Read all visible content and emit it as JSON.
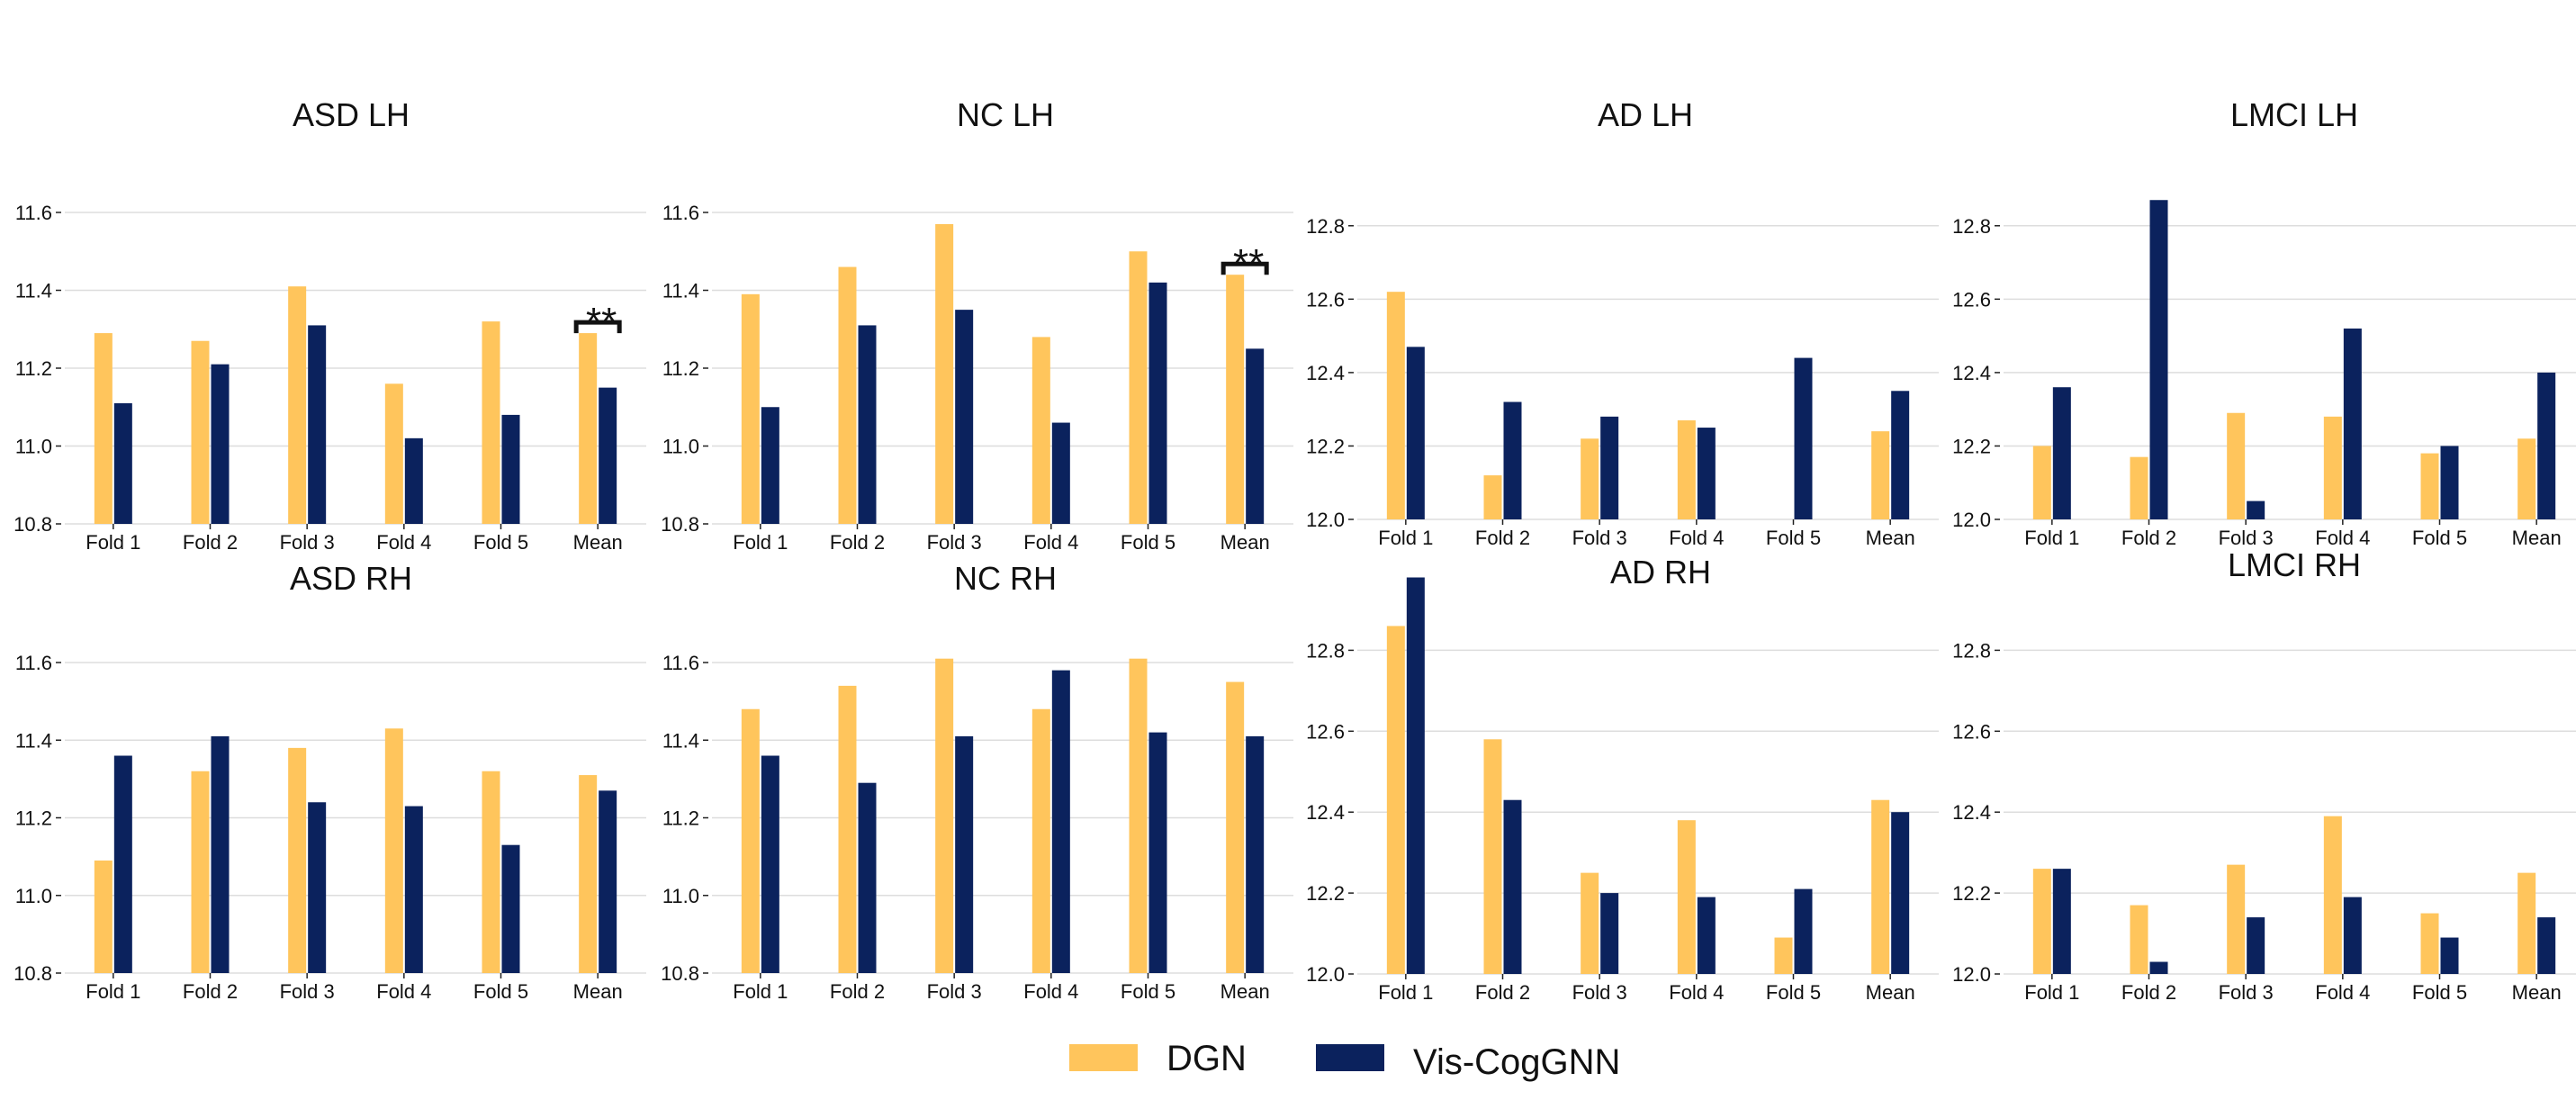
{
  "legend": [
    {
      "name": "DGN",
      "color": "#FFC55C"
    },
    {
      "name": "Vis-CogGNN",
      "color": "#0B225D"
    }
  ],
  "chart_data": [
    {
      "type": "bar",
      "title": "ASD LH",
      "categories": [
        "Fold 1",
        "Fold 2",
        "Fold 3",
        "Fold 4",
        "Fold 5",
        "Mean"
      ],
      "ylim": [
        10.8,
        11.6
      ],
      "yticks": [
        "10.8",
        "11.0",
        "11.2",
        "11.4",
        "11.6"
      ],
      "ytick_values": [
        10.8,
        11.0,
        11.2,
        11.4,
        11.6
      ],
      "series": [
        {
          "name": "DGN",
          "values": [
            11.29,
            11.27,
            11.41,
            11.16,
            11.32,
            11.29
          ]
        },
        {
          "name": "Vis-CogGNN",
          "values": [
            11.11,
            11.21,
            11.31,
            11.02,
            11.08,
            11.15
          ]
        }
      ],
      "significance": {
        "category": "Mean",
        "label": "**"
      }
    },
    {
      "type": "bar",
      "title": "NC LH",
      "categories": [
        "Fold 1",
        "Fold 2",
        "Fold 3",
        "Fold 4",
        "Fold 5",
        "Mean"
      ],
      "ylim": [
        10.8,
        11.6
      ],
      "yticks": [
        "10.8",
        "11.0",
        "11.2",
        "11.4",
        "11.6"
      ],
      "ytick_values": [
        10.8,
        11.0,
        11.2,
        11.4,
        11.6
      ],
      "series": [
        {
          "name": "DGN",
          "values": [
            11.39,
            11.46,
            11.57,
            11.28,
            11.5,
            11.44
          ]
        },
        {
          "name": "Vis-CogGNN",
          "values": [
            11.1,
            11.31,
            11.35,
            11.06,
            11.42,
            11.25
          ]
        }
      ],
      "significance": {
        "category": "Mean",
        "label": "**"
      }
    },
    {
      "type": "bar",
      "title": "AD LH",
      "categories": [
        "Fold 1",
        "Fold 2",
        "Fold 3",
        "Fold 4",
        "Fold 5",
        "Mean"
      ],
      "ylim": [
        12.0,
        12.9
      ],
      "yticks": [
        "12.0",
        "12.2",
        "12.4",
        "12.6",
        "12.8"
      ],
      "ytick_values": [
        12.0,
        12.2,
        12.4,
        12.6,
        12.8
      ],
      "series": [
        {
          "name": "DGN",
          "values": [
            12.62,
            12.12,
            12.22,
            12.27,
            12.0,
            12.24
          ]
        },
        {
          "name": "Vis-CogGNN",
          "values": [
            12.47,
            12.32,
            12.28,
            12.25,
            12.44,
            12.35
          ]
        }
      ]
    },
    {
      "type": "bar",
      "title": "LMCI LH",
      "categories": [
        "Fold 1",
        "Fold 2",
        "Fold 3",
        "Fold 4",
        "Fold 5",
        "Mean"
      ],
      "ylim": [
        12.0,
        12.9
      ],
      "yticks": [
        "12.0",
        "12.2",
        "12.4",
        "12.6",
        "12.8"
      ],
      "ytick_values": [
        12.0,
        12.2,
        12.4,
        12.6,
        12.8
      ],
      "series": [
        {
          "name": "DGN",
          "values": [
            12.2,
            12.17,
            12.29,
            12.28,
            12.18,
            12.22
          ]
        },
        {
          "name": "Vis-CogGNN",
          "values": [
            12.36,
            12.87,
            12.05,
            12.52,
            12.2,
            12.4
          ]
        }
      ]
    },
    {
      "type": "bar",
      "title": "ASD RH",
      "categories": [
        "Fold 1",
        "Fold 2",
        "Fold 3",
        "Fold 4",
        "Fold 5",
        "Mean"
      ],
      "ylim": [
        10.8,
        11.6
      ],
      "yticks": [
        "10.8",
        "11.0",
        "11.2",
        "11.4",
        "11.6"
      ],
      "ytick_values": [
        10.8,
        11.0,
        11.2,
        11.4,
        11.6
      ],
      "series": [
        {
          "name": "DGN",
          "values": [
            11.09,
            11.32,
            11.38,
            11.43,
            11.32,
            11.31
          ]
        },
        {
          "name": "Vis-CogGNN",
          "values": [
            11.36,
            11.41,
            11.24,
            11.23,
            11.13,
            11.27
          ]
        }
      ]
    },
    {
      "type": "bar",
      "title": "NC RH",
      "categories": [
        "Fold 1",
        "Fold 2",
        "Fold 3",
        "Fold 4",
        "Fold 5",
        "Mean"
      ],
      "ylim": [
        10.8,
        11.6
      ],
      "yticks": [
        "10.8",
        "11.0",
        "11.2",
        "11.4",
        "11.6"
      ],
      "ytick_values": [
        10.8,
        11.0,
        11.2,
        11.4,
        11.6
      ],
      "series": [
        {
          "name": "DGN",
          "values": [
            11.48,
            11.54,
            11.61,
            11.48,
            11.61,
            11.55
          ]
        },
        {
          "name": "Vis-CogGNN",
          "values": [
            11.36,
            11.29,
            11.41,
            11.58,
            11.42,
            11.41
          ]
        }
      ]
    },
    {
      "type": "bar",
      "title": "AD RH",
      "categories": [
        "Fold 1",
        "Fold 2",
        "Fold 3",
        "Fold 4",
        "Fold 5",
        "Mean"
      ],
      "ylim": [
        12.0,
        12.99
      ],
      "yticks": [
        "12.0",
        "12.2",
        "12.4",
        "12.6",
        "12.8"
      ],
      "ytick_values": [
        12.0,
        12.2,
        12.4,
        12.6,
        12.8
      ],
      "series": [
        {
          "name": "DGN",
          "values": [
            12.86,
            12.58,
            12.25,
            12.38,
            12.09,
            12.43
          ]
        },
        {
          "name": "Vis-CogGNN",
          "values": [
            12.98,
            12.43,
            12.2,
            12.19,
            12.21,
            12.4
          ]
        }
      ]
    },
    {
      "type": "bar",
      "title": "LMCI RH",
      "categories": [
        "Fold 1",
        "Fold 2",
        "Fold 3",
        "Fold 4",
        "Fold 5",
        "Mean"
      ],
      "ylim": [
        12.0,
        12.99
      ],
      "yticks": [
        "12.0",
        "12.2",
        "12.4",
        "12.6",
        "12.8"
      ],
      "ytick_values": [
        12.0,
        12.2,
        12.4,
        12.6,
        12.8
      ],
      "series": [
        {
          "name": "DGN",
          "values": [
            12.26,
            12.17,
            12.27,
            12.39,
            12.15,
            12.25
          ]
        },
        {
          "name": "Vis-CogGNN",
          "values": [
            12.26,
            12.03,
            12.14,
            12.19,
            12.09,
            12.14
          ]
        }
      ]
    }
  ]
}
